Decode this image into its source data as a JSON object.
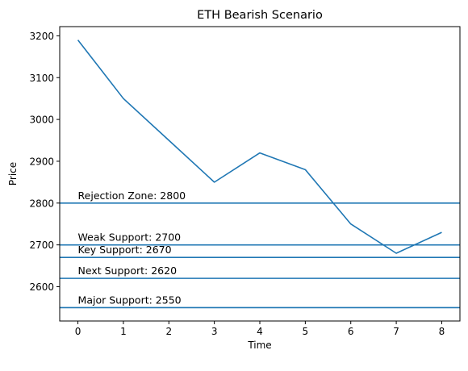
{
  "chart_data": {
    "type": "line",
    "title": "ETH Bearish Scenario",
    "xlabel": "Time",
    "ylabel": "Price",
    "xlim": [
      -0.4,
      8.4
    ],
    "ylim": [
      2518,
      3222
    ],
    "x_ticks": [
      0,
      1,
      2,
      3,
      4,
      5,
      6,
      7,
      8
    ],
    "y_ticks": [
      2600,
      2700,
      2800,
      2900,
      3000,
      3100,
      3200
    ],
    "series": [
      {
        "x": [
          0,
          1,
          2,
          3,
          4,
          5,
          6,
          7,
          8
        ],
        "values": [
          3190,
          3050,
          2950,
          2850,
          2920,
          2880,
          2750,
          2680,
          2730
        ]
      }
    ],
    "levels": [
      {
        "label": "Rejection Zone: 2800",
        "value": 2800
      },
      {
        "label": "Weak Support: 2700",
        "value": 2700
      },
      {
        "label": "Key Support: 2670",
        "value": 2670
      },
      {
        "label": "Next Support: 2620",
        "value": 2620
      },
      {
        "label": "Major Support: 2550",
        "value": 2550
      }
    ],
    "colors": {
      "line": "#1f77b4",
      "levels": "#1f77b4",
      "axes": "#000000"
    },
    "grid": false
  }
}
